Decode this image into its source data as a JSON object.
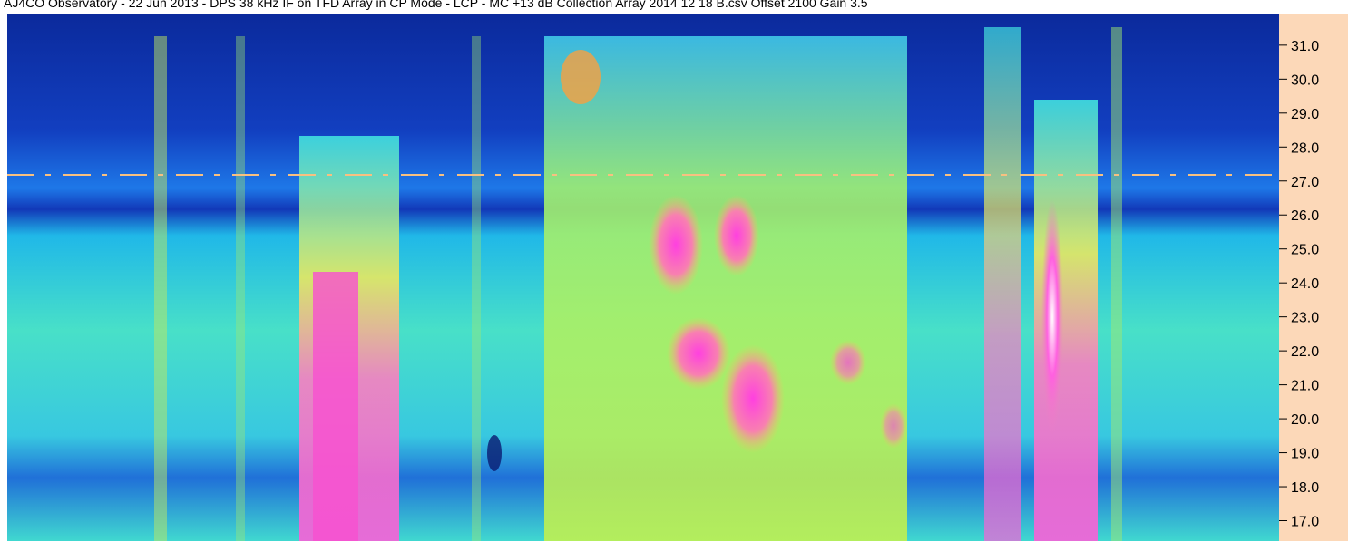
{
  "chart_data": {
    "type": "spectrogram",
    "title": "AJ4CO Observatory - 22 Jun 2013 - DPS 38 kHz IF on TFD Array in CP Mode - LCP - MC +13 dB Collection Array 2014 12 18 B.csv Offset 2100 Gain 3.5",
    "ylim": [
      16.4,
      31.85
    ],
    "yticks": [
      {
        "value": 31,
        "label": "31.0"
      },
      {
        "value": 30,
        "label": "30.0"
      },
      {
        "value": 29,
        "label": "29.0"
      },
      {
        "value": 28,
        "label": "28.0"
      },
      {
        "value": 27,
        "label": "27.0"
      },
      {
        "value": 26,
        "label": "26.0"
      },
      {
        "value": 25,
        "label": "25.0"
      },
      {
        "value": 24,
        "label": "24.0"
      },
      {
        "value": 23,
        "label": "23.0"
      },
      {
        "value": 22,
        "label": "22.0"
      },
      {
        "value": 21,
        "label": "21.0"
      },
      {
        "value": 20,
        "label": "20.0"
      },
      {
        "value": 19,
        "label": "19.0"
      },
      {
        "value": 18,
        "label": "18.0"
      },
      {
        "value": 17,
        "label": "17.0"
      }
    ]
  }
}
